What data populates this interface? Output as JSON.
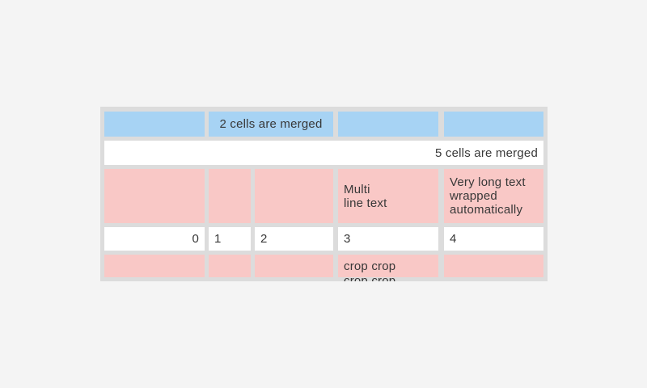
{
  "colors": {
    "page_bg": "#f4f4f4",
    "table_bg": "#dcdcdc",
    "header_cell_blue": "#a7d3f4",
    "body_cell_pink": "#f9c8c6",
    "cell_white": "#ffffff",
    "text": "#383838"
  },
  "table": {
    "rows": [
      {
        "name": "blue header row with a 2-column merged cell",
        "cells": [
          {
            "text": ""
          },
          {
            "text": "2 cells are merged",
            "merged_columns": 2,
            "align": "center"
          },
          {
            "text": ""
          },
          {
            "text": ""
          }
        ]
      },
      {
        "name": "white row merged across all columns",
        "cells": [
          {
            "text": "5 cells are merged",
            "merged_columns": 5,
            "align": "right"
          }
        ]
      },
      {
        "name": "pink tall row with multi-line and wrapped text",
        "cells": [
          {
            "text": ""
          },
          {
            "text": ""
          },
          {
            "text": ""
          },
          {
            "text": "Multi\nline text"
          },
          {
            "text": "Very long text wrapped automatically"
          }
        ]
      },
      {
        "name": "white number row",
        "cells": [
          {
            "text": "0",
            "align": "right"
          },
          {
            "text": "1"
          },
          {
            "text": "2"
          },
          {
            "text": "3"
          },
          {
            "text": "4"
          }
        ]
      },
      {
        "name": "pink row clipped at table bottom",
        "cells": [
          {
            "text": ""
          },
          {
            "text": ""
          },
          {
            "text": ""
          },
          {
            "text": "crop crop crop crop"
          },
          {
            "text": ""
          }
        ]
      }
    ]
  }
}
